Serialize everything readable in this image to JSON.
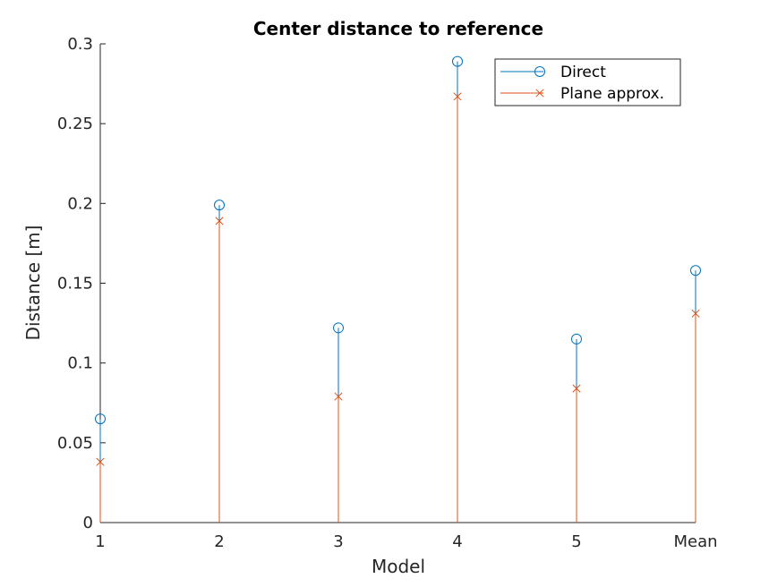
{
  "chart_data": {
    "type": "stem",
    "title": "Center distance to reference",
    "xlabel": "Model",
    "ylabel": "Distance [m]",
    "categories": [
      "1",
      "2",
      "3",
      "4",
      "5",
      "Mean"
    ],
    "ylim": [
      0,
      0.3
    ],
    "yticks": [
      0,
      0.05,
      0.1,
      0.15,
      0.2,
      0.25,
      0.3
    ],
    "ytick_labels": [
      "0",
      "0.05",
      "0.1",
      "0.15",
      "0.2",
      "0.25",
      "0.3"
    ],
    "grid": false,
    "legend_position": "top-right",
    "series": [
      {
        "name": "Direct",
        "marker": "circle",
        "color": "#0072BD",
        "values": [
          0.065,
          0.199,
          0.122,
          0.289,
          0.115,
          0.158
        ]
      },
      {
        "name": "Plane approx.",
        "marker": "cross",
        "color": "#D95319",
        "values": [
          0.038,
          0.189,
          0.079,
          0.267,
          0.084,
          0.131
        ]
      }
    ]
  }
}
